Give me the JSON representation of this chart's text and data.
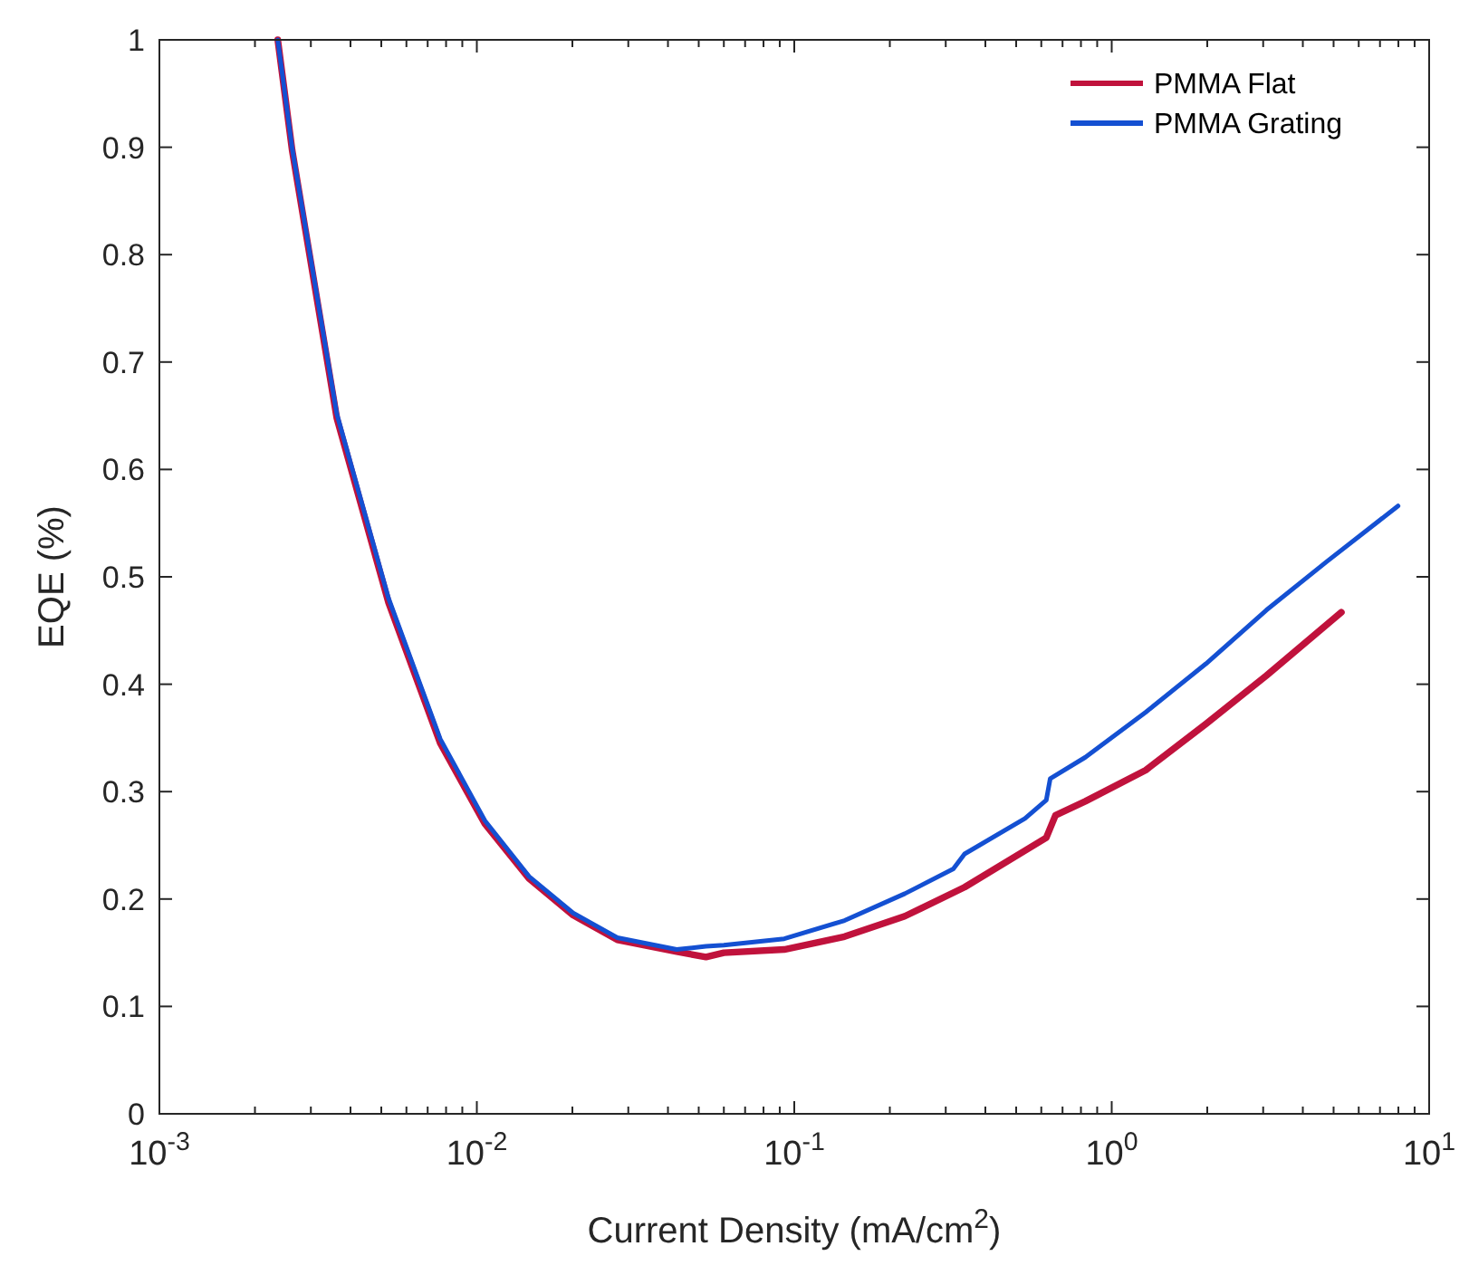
{
  "chart_data": {
    "type": "line",
    "xlabel": "Current Density (mA/cm$^{2}$)",
    "ylabel": "EQE (%)",
    "log": "x",
    "xlim": [
      0.001,
      10
    ],
    "ylim": [
      0,
      1
    ],
    "xticks": [
      {
        "value": 0.001,
        "label": "10$^{-3}$"
      },
      {
        "value": 0.01,
        "label": "10$^{-2}$"
      },
      {
        "value": 0.1,
        "label": "10$^{-1}$"
      },
      {
        "value": 1,
        "label": "10$^{0}$"
      },
      {
        "value": 10,
        "label": "10$^{1}$"
      }
    ],
    "yticks": [
      0,
      0.1,
      0.2,
      0.3,
      0.4,
      0.5,
      0.6,
      0.7,
      0.8,
      0.9,
      1
    ],
    "grid": false,
    "legend": "top right",
    "line_style": "solid",
    "marker": "none",
    "series": [
      {
        "name": "PMMA Flat",
        "color": "#c0123c",
        "x": [
          0.00236,
          0.00262,
          0.00362,
          0.00527,
          0.00767,
          0.0106,
          0.0146,
          0.0201,
          0.0277,
          0.0426,
          0.0527,
          0.06,
          0.093,
          0.144,
          0.223,
          0.344,
          0.533,
          0.622,
          0.665,
          0.826,
          1.28,
          1.98,
          3.07,
          5.29
        ],
        "values": [
          1.0,
          0.897,
          0.648,
          0.476,
          0.345,
          0.27,
          0.219,
          0.185,
          0.162,
          0.151,
          0.146,
          0.15,
          0.153,
          0.165,
          0.184,
          0.211,
          0.245,
          0.257,
          0.278,
          0.291,
          0.32,
          0.363,
          0.408,
          0.467
        ]
      },
      {
        "name": "PMMA Grating",
        "color": "#1450d2",
        "x": [
          0.00236,
          0.00262,
          0.00362,
          0.00527,
          0.00767,
          0.0106,
          0.0146,
          0.0201,
          0.0277,
          0.0426,
          0.0527,
          0.06,
          0.093,
          0.144,
          0.223,
          0.317,
          0.344,
          0.533,
          0.622,
          0.64,
          0.826,
          1.28,
          1.98,
          3.07,
          4.75,
          7.98
        ],
        "values": [
          1.0,
          0.899,
          0.652,
          0.48,
          0.349,
          0.273,
          0.221,
          0.187,
          0.164,
          0.153,
          0.156,
          0.157,
          0.163,
          0.18,
          0.205,
          0.228,
          0.242,
          0.275,
          0.292,
          0.312,
          0.332,
          0.374,
          0.419,
          0.469,
          0.514,
          0.566
        ]
      }
    ]
  }
}
